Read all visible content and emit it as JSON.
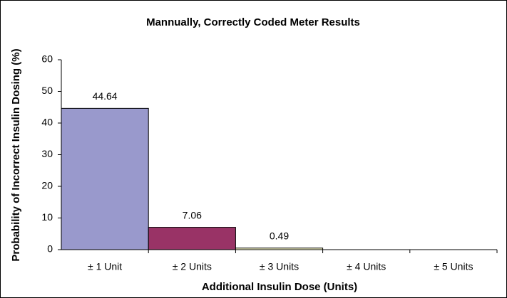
{
  "chart_data": {
    "type": "bar",
    "title": "Mannually, Correctly Coded Meter Results",
    "x_label": "Additional Insulin Dose (Units)",
    "y_label": "Probability of Incorrect Insulin Dosing (%)",
    "categories": [
      "± 1 Unit",
      "± 2 Units",
      "± 3 Units",
      "± 4 Units",
      "± 5 Units"
    ],
    "values": [
      44.64,
      7.06,
      0.49,
      null,
      null
    ],
    "colors": [
      "#9999cc",
      "#993366",
      "#ffffcc",
      "#9999cc",
      "#9999cc"
    ],
    "ylim": [
      0,
      60
    ],
    "yticks": [
      0,
      10,
      20,
      30,
      40,
      50,
      60
    ],
    "grid": false
  }
}
